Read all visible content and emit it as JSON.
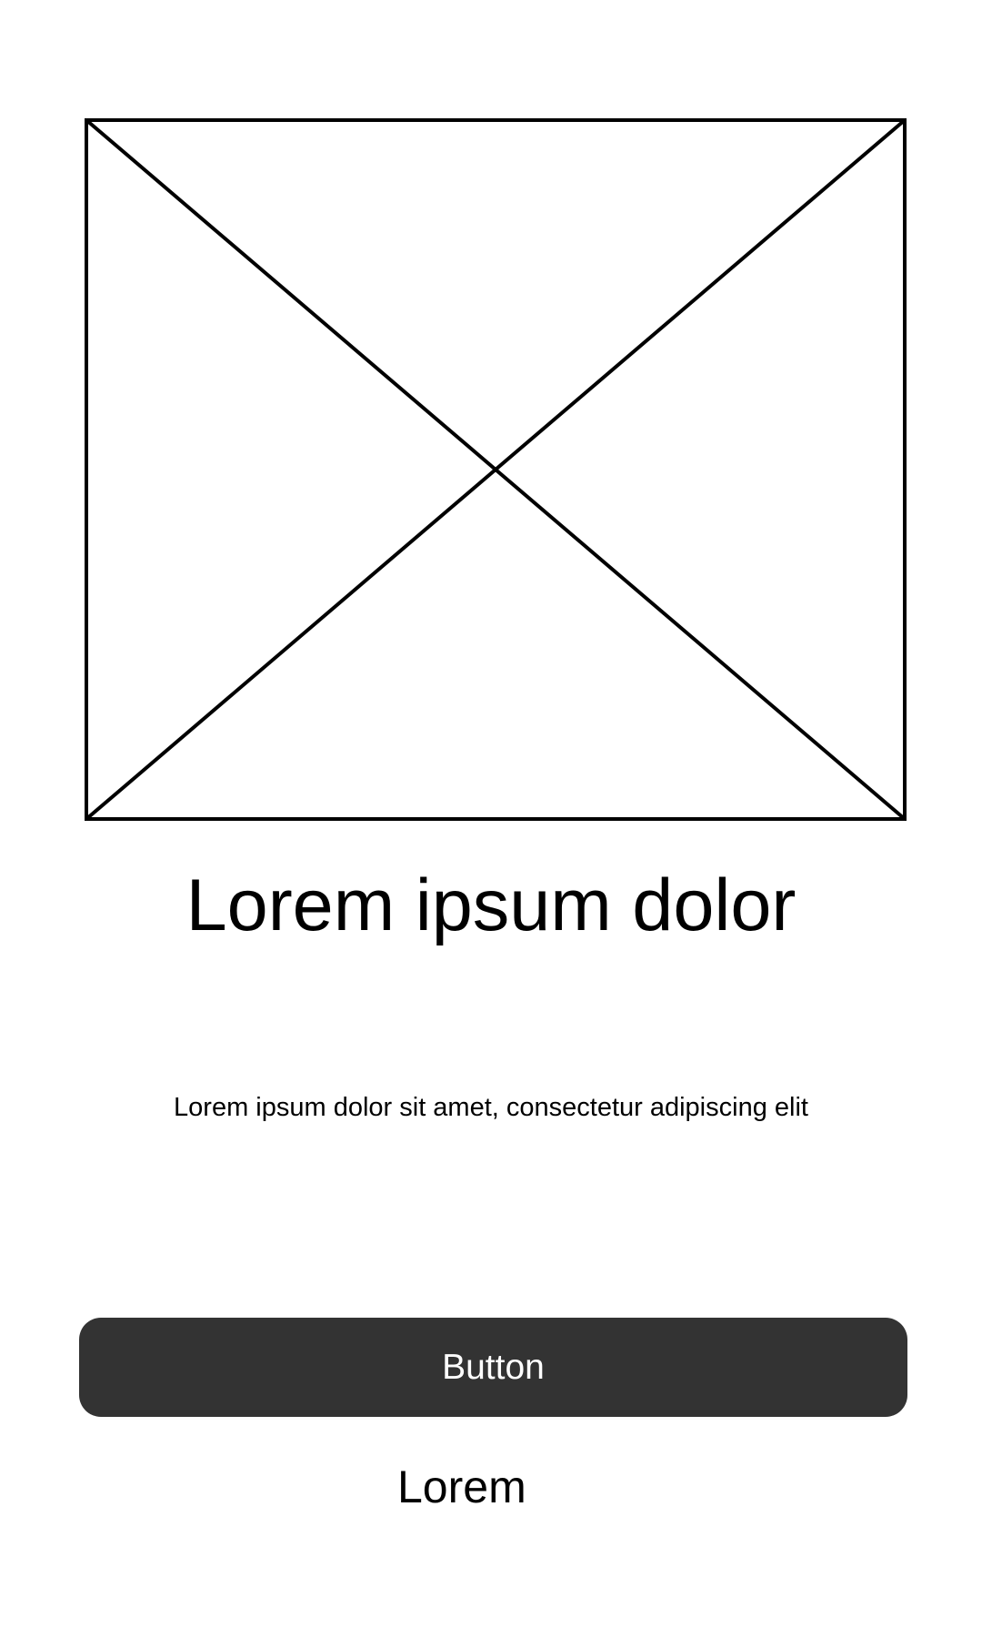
{
  "hero_image": {
    "icon": "image-placeholder-icon",
    "stroke_color": "#000000"
  },
  "content": {
    "headline": "Lorem ipsum dolor",
    "subtext": "Lorem ipsum dolor sit amet, consectetur adipiscing elit"
  },
  "actions": {
    "primary_button_label": "Button",
    "primary_button_color": "#333333",
    "secondary_link_label": "Lorem"
  }
}
